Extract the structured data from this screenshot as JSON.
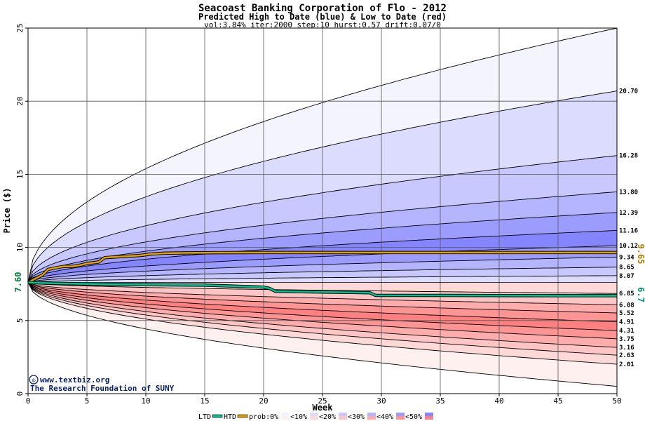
{
  "chart_data": {
    "type": "area",
    "title": "Seacoast Banking Corporation of Flo - 2012",
    "subtitle": "Predicted High to Date (blue) &  Low to Date (red)",
    "params": "vol:3.84% iter:2000 step:10 hurst:0.57 drift:0.07/0",
    "xlabel": "Week",
    "ylabel": "Price ($)",
    "xlim": [
      0,
      50
    ],
    "ylim": [
      0,
      25
    ],
    "x_ticks": [
      0,
      5,
      10,
      15,
      20,
      25,
      30,
      35,
      40,
      45,
      50
    ],
    "y_ticks": [
      0,
      5,
      10,
      15,
      20,
      25
    ],
    "grid": true,
    "start_price": 7.6,
    "start_label": "7.60",
    "high_bands": [
      {
        "end": 25.0,
        "color": "#f4f4ff"
      },
      {
        "end": 20.7,
        "color": "#dcdcff"
      },
      {
        "end": 16.28,
        "color": "#c8c8ff"
      },
      {
        "end": 13.8,
        "color": "#b4b4ff"
      },
      {
        "end": 12.39,
        "color": "#9c9cff"
      },
      {
        "end": 11.16,
        "color": "#8585ff"
      },
      {
        "end": 10.12,
        "color": "#9c9cff"
      },
      {
        "end": 9.34,
        "color": "#b4b4ff"
      },
      {
        "end": 8.65,
        "color": "#c8c8ff"
      },
      {
        "end": 8.07,
        "color": "#dcdcff"
      }
    ],
    "low_bands": [
      {
        "end": 0.5,
        "color": "#fff0f0"
      },
      {
        "end": 2.01,
        "color": "#ffd8d8"
      },
      {
        "end": 2.63,
        "color": "#ffc4c4"
      },
      {
        "end": 3.16,
        "color": "#ffacac"
      },
      {
        "end": 3.75,
        "color": "#ff9494"
      },
      {
        "end": 4.31,
        "color": "#ff8080"
      },
      {
        "end": 4.91,
        "color": "#ff9494"
      },
      {
        "end": 5.52,
        "color": "#ffacac"
      },
      {
        "end": 6.08,
        "color": "#ffc4c4"
      },
      {
        "end": 6.85,
        "color": "#ffd8d8"
      }
    ],
    "right_labels": [
      "20.70",
      "16.28",
      "13.80",
      "12.39",
      "11.16",
      "10.12",
      "9.34",
      "8.65",
      "8.07",
      "6.85",
      "6.08",
      "5.52",
      "4.91",
      "4.31",
      "3.75",
      "3.16",
      "2.63",
      "2.01"
    ],
    "htd_series": {
      "color": "#e0a000",
      "points": [
        [
          0,
          7.6
        ],
        [
          0.7,
          7.9
        ],
        [
          1.2,
          8.1
        ],
        [
          1.7,
          8.5
        ],
        [
          2.3,
          8.6
        ],
        [
          3.0,
          8.7
        ],
        [
          3.8,
          8.7
        ],
        [
          4.5,
          8.8
        ],
        [
          5.0,
          8.9
        ],
        [
          6.0,
          9.0
        ],
        [
          6.5,
          9.3
        ],
        [
          7.5,
          9.35
        ],
        [
          8.5,
          9.4
        ],
        [
          9.5,
          9.45
        ],
        [
          10.5,
          9.55
        ],
        [
          11.5,
          9.6
        ],
        [
          13,
          9.62
        ],
        [
          16,
          9.64
        ],
        [
          20,
          9.65
        ],
        [
          30,
          9.65
        ],
        [
          40,
          9.65
        ],
        [
          50,
          9.65
        ]
      ]
    },
    "ltd_series": {
      "color": "#00c090",
      "points": [
        [
          0,
          7.6
        ],
        [
          2,
          7.55
        ],
        [
          5,
          7.5
        ],
        [
          10,
          7.45
        ],
        [
          15,
          7.42
        ],
        [
          17.5,
          7.35
        ],
        [
          20,
          7.28
        ],
        [
          20.5,
          7.2
        ],
        [
          21,
          7.0
        ],
        [
          25,
          6.95
        ],
        [
          29,
          6.9
        ],
        [
          29.5,
          6.72
        ],
        [
          35,
          6.72
        ],
        [
          40,
          6.71
        ],
        [
          45,
          6.7
        ],
        [
          50,
          6.7
        ]
      ]
    },
    "htd_end_label": "9.65",
    "ltd_end_label": "6.7",
    "legend": [
      "LTD",
      "HTD",
      "prob:0%",
      "<10%",
      "<20%",
      "<30%",
      "<40%",
      "<50%"
    ],
    "legend_swatch_colors": {
      "ltd": "#00c090",
      "htd": "#e0a000",
      "bands": [
        [
          "#f4f4ff",
          "#fff0f0"
        ],
        [
          "#dcdcff",
          "#ffd8d8"
        ],
        [
          "#c8c8ff",
          "#ffc4c4"
        ],
        [
          "#b4b4ff",
          "#ffacac"
        ],
        [
          "#9c9cff",
          "#ff9494"
        ],
        [
          "#8585ff",
          "#ff8080"
        ]
      ]
    }
  },
  "credit": {
    "line1": "www.textbiz.org",
    "copyright_symbol": "©",
    "line2": "The Research Foundation of SUNY"
  }
}
